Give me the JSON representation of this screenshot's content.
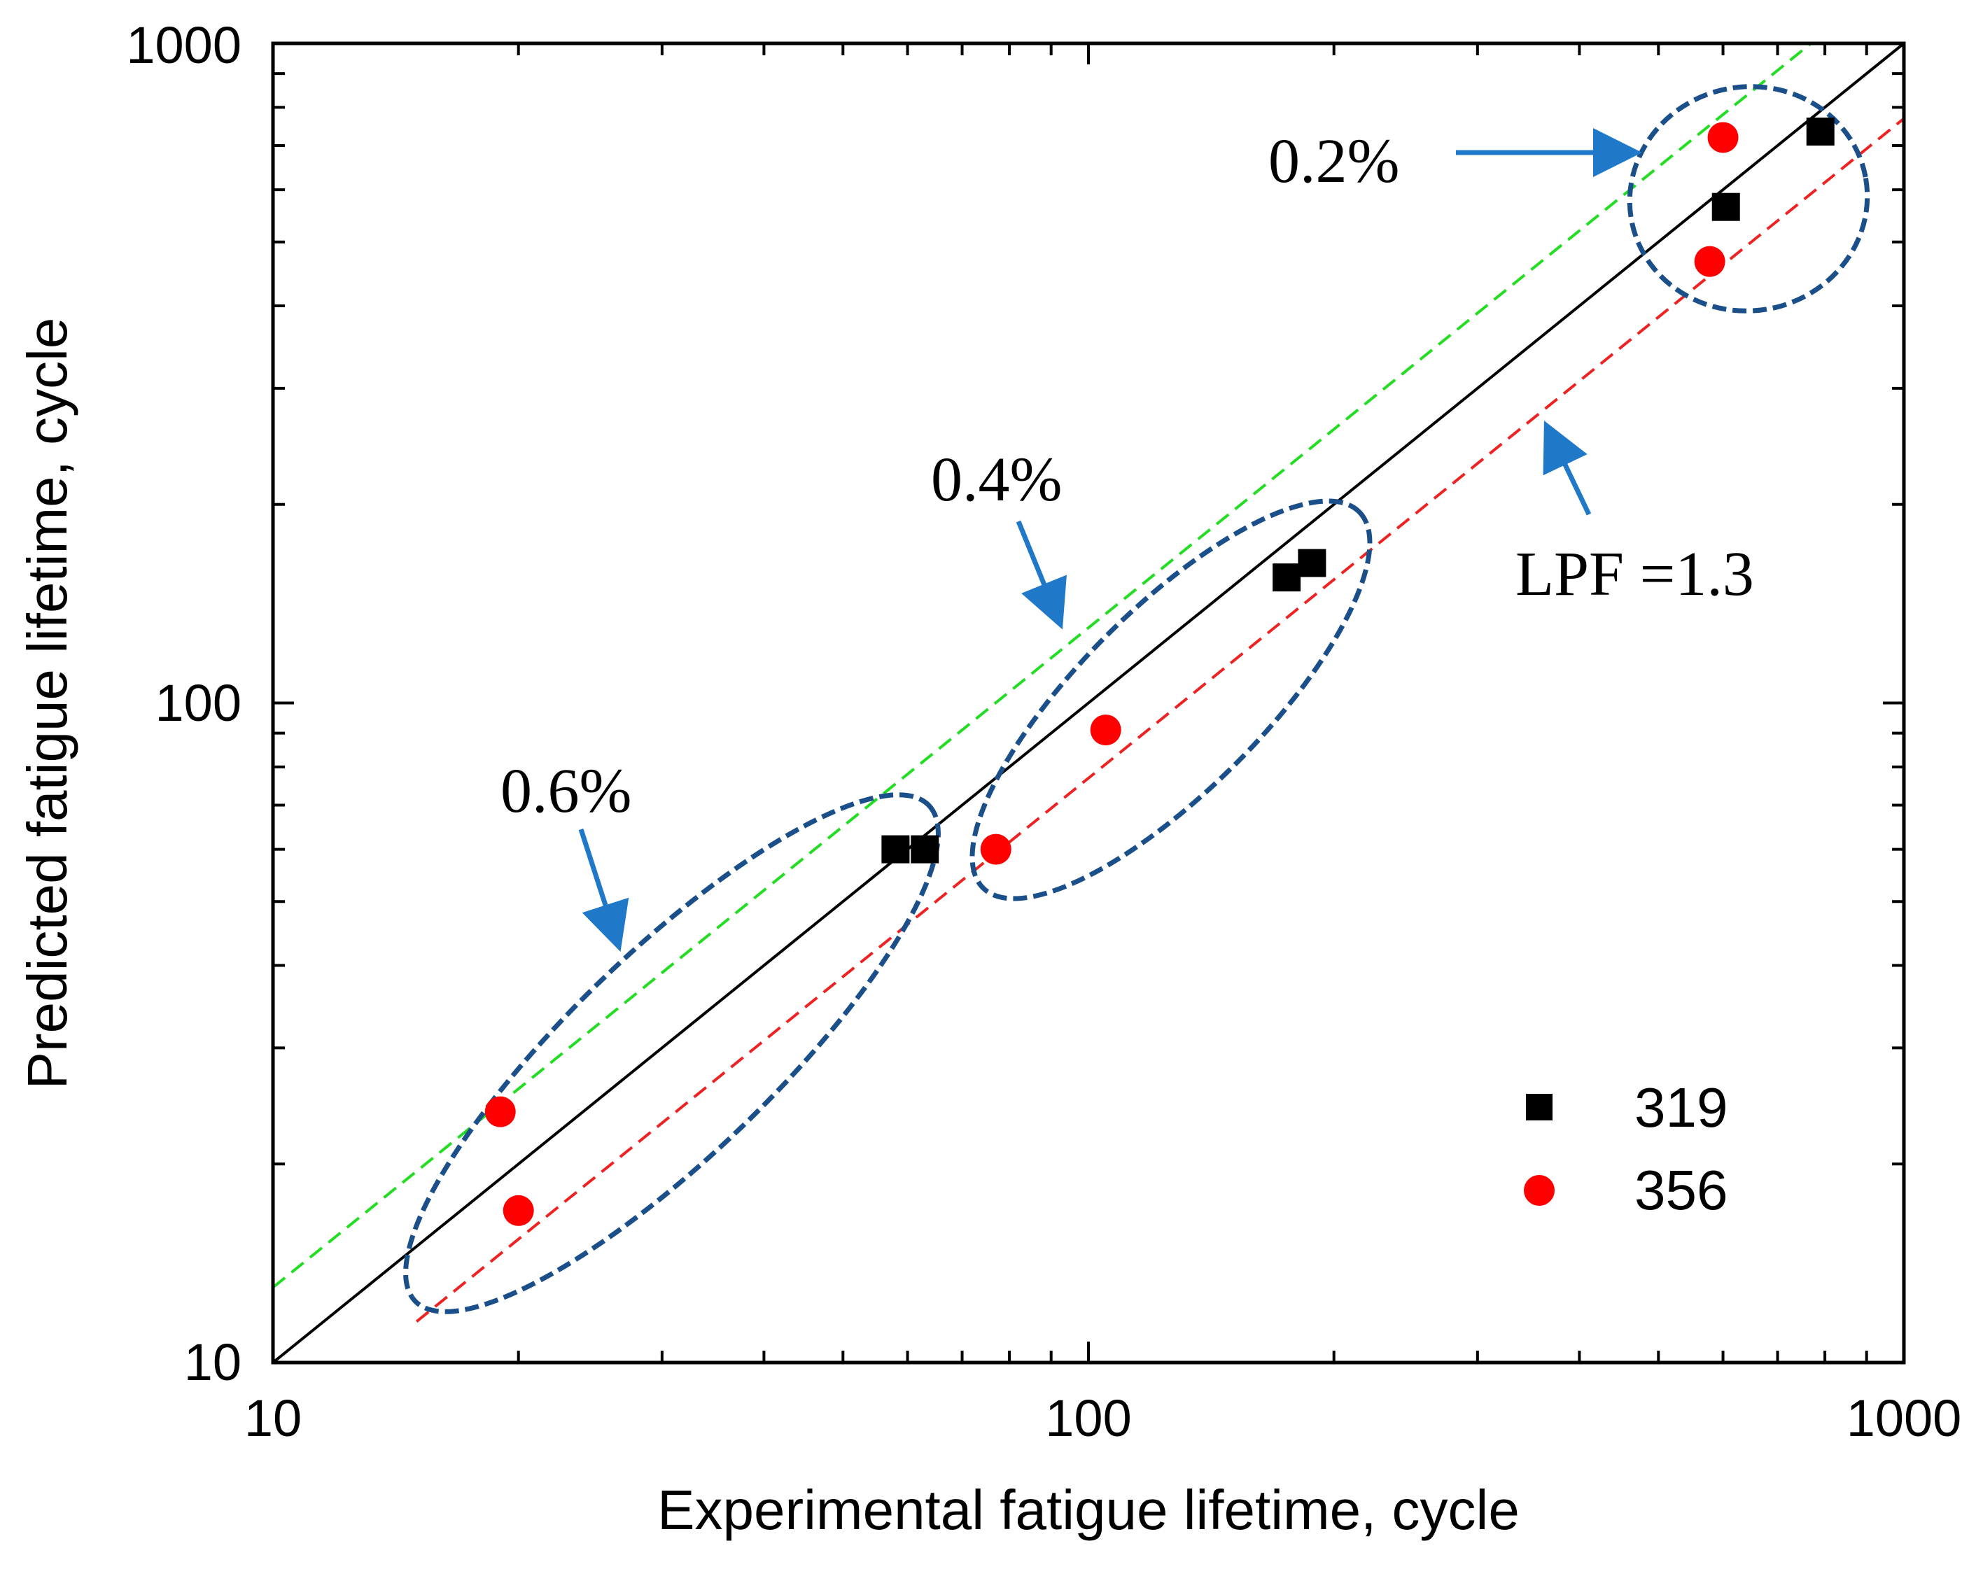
{
  "chart_data": {
    "type": "scatter",
    "xlabel": "Experimental fatigue lifetime, cycle",
    "ylabel": "Predicted fatigue lifetime, cycle",
    "xscale": "log",
    "yscale": "log",
    "xlim": [
      10,
      1000
    ],
    "ylim": [
      10,
      1000
    ],
    "x_tick_labels": [
      "10",
      "100",
      "1000"
    ],
    "y_tick_labels": [
      "10",
      "100",
      "1000"
    ],
    "legend_position": "bottom-right",
    "series": [
      {
        "name": "319",
        "marker": "square",
        "color": "#000000",
        "points": [
          {
            "x": 58,
            "y": 60
          },
          {
            "x": 63,
            "y": 60
          },
          {
            "x": 175,
            "y": 155
          },
          {
            "x": 188,
            "y": 163
          },
          {
            "x": 605,
            "y": 565
          },
          {
            "x": 790,
            "y": 735
          }
        ]
      },
      {
        "name": "356",
        "marker": "circle",
        "color": "#ff0000",
        "points": [
          {
            "x": 19,
            "y": 24
          },
          {
            "x": 20,
            "y": 17
          },
          {
            "x": 77,
            "y": 60
          },
          {
            "x": 105,
            "y": 91
          },
          {
            "x": 578,
            "y": 467
          },
          {
            "x": 600,
            "y": 720
          }
        ]
      }
    ],
    "reference_lines": [
      {
        "role": "equality",
        "color": "#000000",
        "style": "solid",
        "factor": 1.0
      },
      {
        "role": "upper-bound",
        "color": "#22dd22",
        "style": "dashed",
        "factor": 1.3
      },
      {
        "role": "lower-bound",
        "color": "#ee2222",
        "style": "dashed",
        "factor": 0.7692
      }
    ],
    "annotations": [
      {
        "text": "0.6%"
      },
      {
        "text": "0.4%"
      },
      {
        "text": "0.2%"
      },
      {
        "text": "LPF =1.3"
      }
    ],
    "group_color": "#1a4f8a",
    "arrow_color": "#1f78c8"
  }
}
